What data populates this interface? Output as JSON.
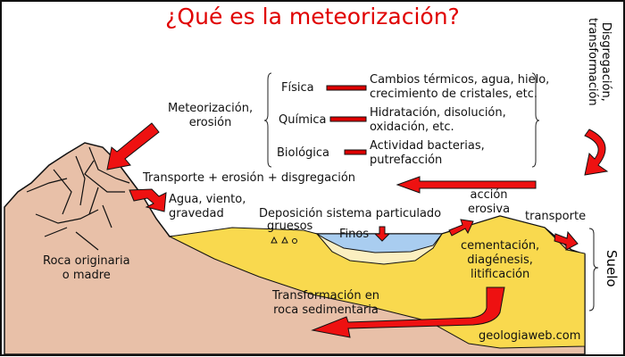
{
  "title": "¿Qué es la meteorización?",
  "side_label": [
    "Disgregación,",
    "transformación"
  ],
  "meteorizacion": [
    "Meteorización,",
    "erosión"
  ],
  "types": [
    {
      "name": "Física",
      "desc": [
        "Cambios térmicos, agua, hielo,",
        "crecimiento de cristales, etc."
      ]
    },
    {
      "name": "Química",
      "desc": [
        "Hidratación, disolución,",
        "oxidación, etc."
      ]
    },
    {
      "name": "Biológica",
      "desc": [
        "Actividad bacterias,",
        "putrefacción"
      ]
    }
  ],
  "transport_line": "Transporte + erosión + disgregación",
  "agents": [
    "Agua, viento,",
    "gravedad"
  ],
  "deposicion": "Deposición sistema particulado",
  "gruesos": "gruesos",
  "finos": "Finos",
  "accion": [
    "acción",
    "erosiva"
  ],
  "transporte": "transporte",
  "suelo": "Suelo",
  "roca": [
    "Roca originaria",
    "o madre"
  ],
  "cementacion": [
    "cementación,",
    "diagénesis,",
    "litificación"
  ],
  "transformacion": [
    "Transformación en",
    "roca sedimentaria"
  ],
  "credit": "geologiaweb.com",
  "colors": {
    "title": "#e00000",
    "arrow": "#ee1111",
    "rock": "#e8c0a8",
    "sediment": "#f9d94e",
    "water": "#a9cdf0",
    "fines": "#fbefc0"
  }
}
